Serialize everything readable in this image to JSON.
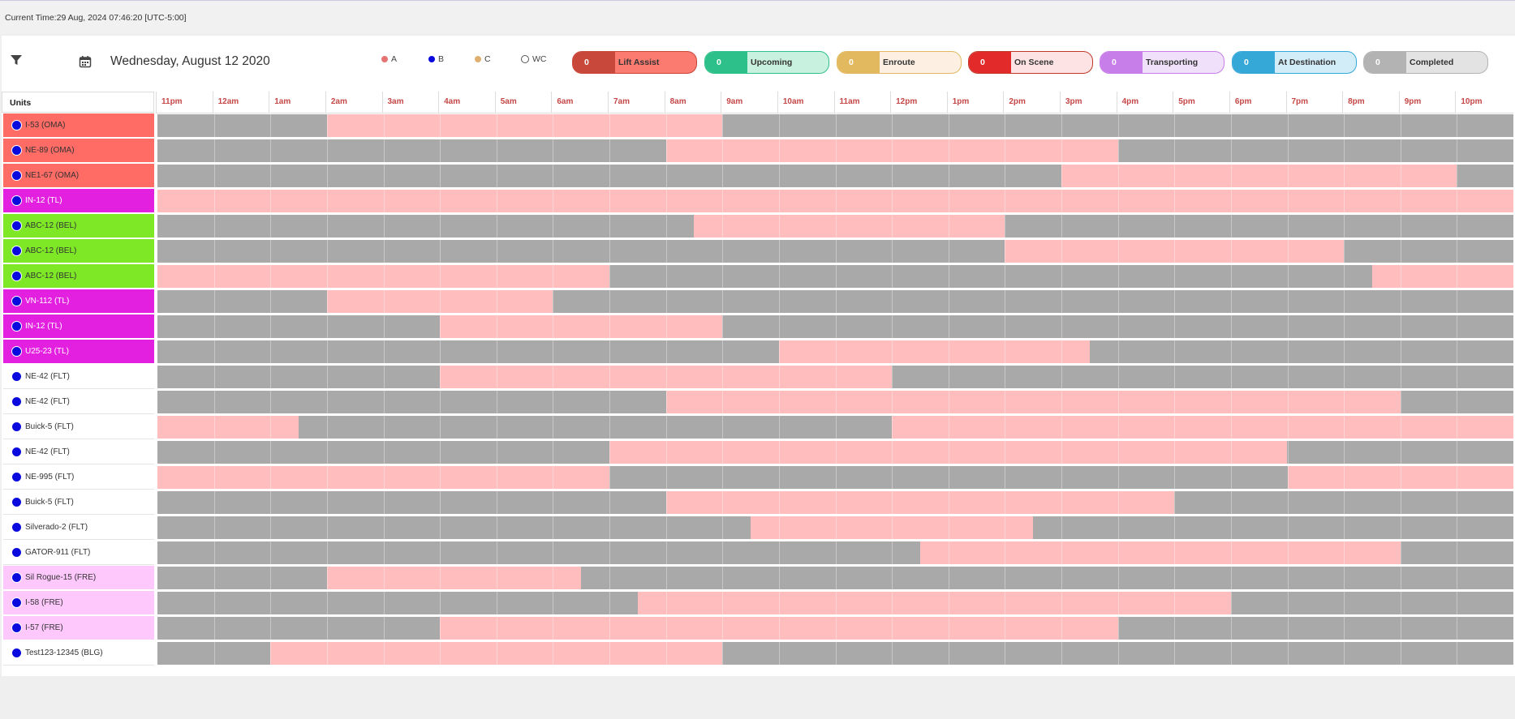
{
  "header": {
    "current_time": "Current Time:29 Aug, 2024 07:46:20 [UTC-5:00]"
  },
  "toolbar": {
    "filter_icon": "filter-icon",
    "calendar_icon": "calendar-icon",
    "date": "Wednesday, August 12 2020",
    "legend": [
      {
        "label": "A",
        "color": "#e57373",
        "hollow": false
      },
      {
        "label": "B",
        "color": "#0a0adf",
        "hollow": false
      },
      {
        "label": "C",
        "color": "#e0b070",
        "hollow": false
      },
      {
        "label": "WC",
        "color": "#ffffff",
        "hollow": true
      }
    ],
    "statuses": [
      {
        "label": "Lift Assist",
        "count": "0",
        "dark": "#c8483c",
        "light": "#fb7b70",
        "border": "#c8483c"
      },
      {
        "label": "Upcoming",
        "count": "0",
        "dark": "#2ec08a",
        "light": "#c8f2df",
        "border": "#2ec08a"
      },
      {
        "label": "Enroute",
        "count": "0",
        "dark": "#e2b95e",
        "light": "#fdf0e2",
        "border": "#e2b95e"
      },
      {
        "label": "On Scene",
        "count": "0",
        "dark": "#e32a2a",
        "light": "#fde3e3",
        "border": "#c0392b"
      },
      {
        "label": "Transporting",
        "count": "0",
        "dark": "#c77ee8",
        "light": "#f0e0fa",
        "border": "#c77ee8"
      },
      {
        "label": "At Destination",
        "count": "0",
        "dark": "#35a8d8",
        "light": "#d3edf8",
        "border": "#35a8d8"
      },
      {
        "label": "Completed",
        "count": "0",
        "dark": "#b3b3b3",
        "light": "#e3e3e3",
        "border": "#b3b3b3"
      }
    ]
  },
  "schedule": {
    "units_header": "Units",
    "hours": [
      "11pm",
      "12am",
      "1am",
      "2am",
      "3am",
      "4am",
      "5am",
      "6am",
      "7am",
      "8am",
      "9am",
      "10am",
      "11am",
      "12pm",
      "1pm",
      "2pm",
      "3pm",
      "4pm",
      "5pm",
      "6pm",
      "7pm",
      "8pm",
      "9pm",
      "10pm"
    ],
    "units": [
      {
        "name": "I-53 (OMA)",
        "color": "#ff6b65",
        "text": "#333",
        "segments": [
          [
            3,
            10
          ]
        ]
      },
      {
        "name": "NE-89 (OMA)",
        "color": "#ff6b65",
        "text": "#333",
        "segments": [
          [
            9,
            17
          ]
        ]
      },
      {
        "name": "NE1-67 (OMA)",
        "color": "#ff6b65",
        "text": "#333",
        "segments": [
          [
            16,
            23
          ]
        ]
      },
      {
        "name": "IN-12 (TL)",
        "color": "#e31fe0",
        "text": "#fff",
        "segments": [
          [
            0,
            24
          ]
        ]
      },
      {
        "name": "ABC-12 (BEL)",
        "color": "#7ee827",
        "text": "#333",
        "segments": [
          [
            9.5,
            15
          ]
        ]
      },
      {
        "name": "ABC-12 (BEL)",
        "color": "#7ee827",
        "text": "#333",
        "segments": [
          [
            15,
            21
          ]
        ]
      },
      {
        "name": "ABC-12 (BEL)",
        "color": "#7ee827",
        "text": "#333",
        "segments": [
          [
            0,
            8
          ],
          [
            21.5,
            24
          ]
        ]
      },
      {
        "name": "VN-112 (TL)",
        "color": "#e31fe0",
        "text": "#fff",
        "segments": [
          [
            3,
            7
          ]
        ]
      },
      {
        "name": "IN-12 (TL)",
        "color": "#e31fe0",
        "text": "#fff",
        "segments": [
          [
            5,
            10
          ]
        ]
      },
      {
        "name": "U25-23 (TL)",
        "color": "#e31fe0",
        "text": "#fff",
        "segments": [
          [
            11,
            16.5
          ]
        ]
      },
      {
        "name": "NE-42 (FLT)",
        "color": "#ffffff",
        "text": "#333",
        "segments": [
          [
            5,
            13
          ]
        ]
      },
      {
        "name": "NE-42 (FLT)",
        "color": "#ffffff",
        "text": "#333",
        "segments": [
          [
            9,
            22
          ]
        ]
      },
      {
        "name": "Buick-5 (FLT)",
        "color": "#ffffff",
        "text": "#333",
        "segments": [
          [
            0,
            2.5
          ],
          [
            13,
            24
          ]
        ]
      },
      {
        "name": "NE-42 (FLT)",
        "color": "#ffffff",
        "text": "#333",
        "segments": [
          [
            8,
            20
          ]
        ]
      },
      {
        "name": "NE-995 (FLT)",
        "color": "#ffffff",
        "text": "#333",
        "segments": [
          [
            0,
            8
          ],
          [
            20,
            24
          ]
        ]
      },
      {
        "name": "Buick-5 (FLT)",
        "color": "#ffffff",
        "text": "#333",
        "segments": [
          [
            9,
            18
          ]
        ]
      },
      {
        "name": "Silverado-2 (FLT)",
        "color": "#ffffff",
        "text": "#333",
        "segments": [
          [
            10.5,
            15.5
          ]
        ]
      },
      {
        "name": "GATOR-911 (FLT)",
        "color": "#ffffff",
        "text": "#333",
        "segments": [
          [
            13.5,
            22
          ]
        ]
      },
      {
        "name": "Sil Rogue-15 (FRE)",
        "color": "#fec8fd",
        "text": "#333",
        "segments": [
          [
            3,
            7.5
          ]
        ]
      },
      {
        "name": "I-58 (FRE)",
        "color": "#fec8fd",
        "text": "#333",
        "segments": [
          [
            8.5,
            19
          ]
        ]
      },
      {
        "name": "I-57 (FRE)",
        "color": "#fec8fd",
        "text": "#333",
        "segments": [
          [
            5,
            17
          ]
        ]
      },
      {
        "name": "Test123-12345 (BLG)",
        "color": "#ffffff",
        "text": "#333",
        "segments": [
          [
            2,
            10
          ]
        ]
      }
    ]
  }
}
